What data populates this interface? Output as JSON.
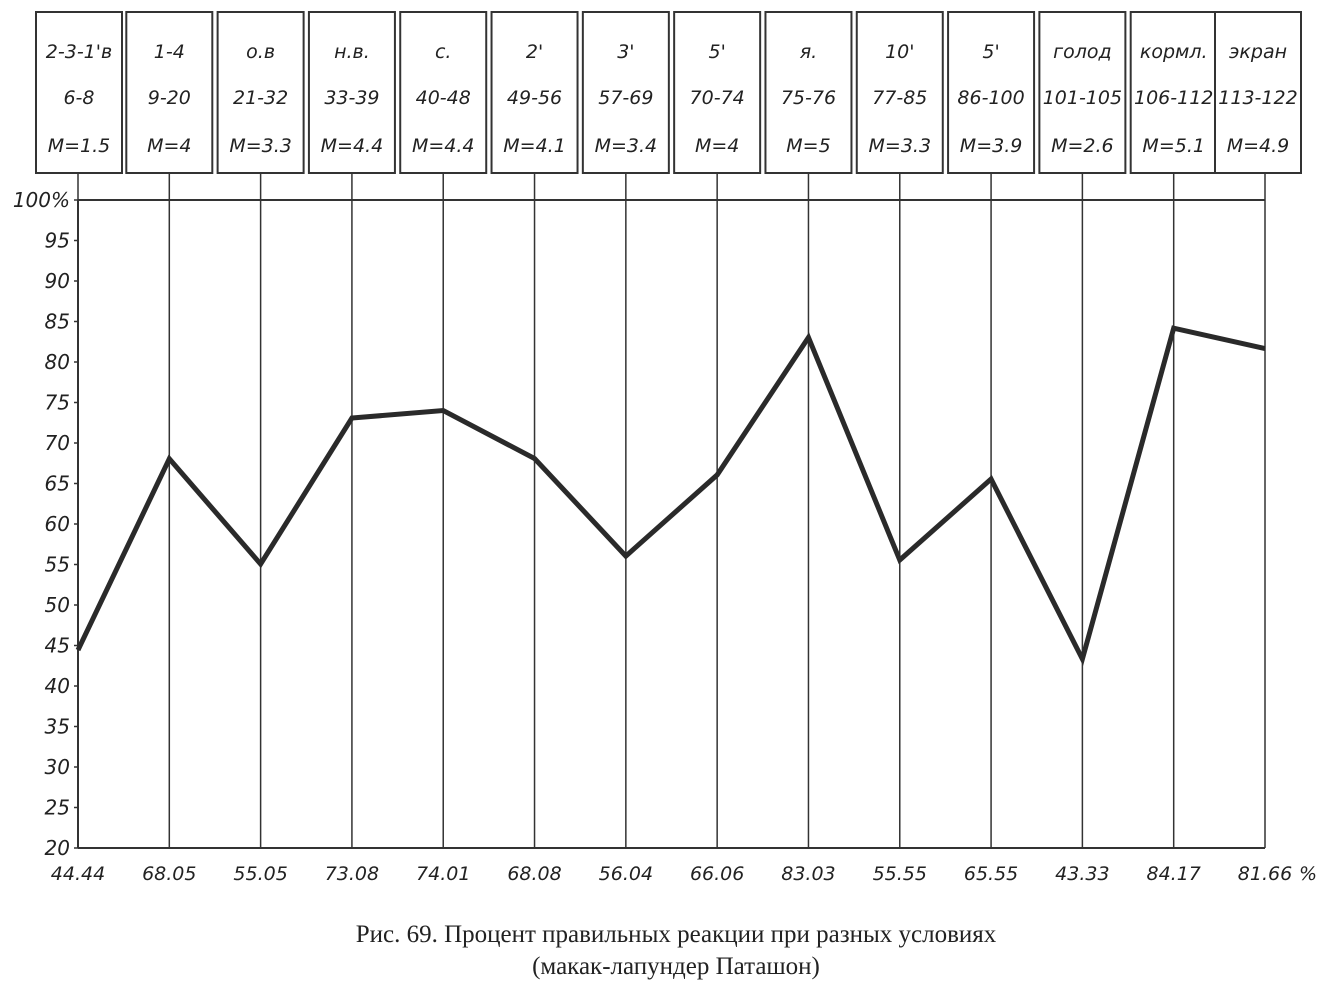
{
  "chart_data": {
    "type": "line",
    "caption": "Рис. 69. Процент правильных реакции при разных условиях",
    "subcaption": "(макак-лапундер Паташон)",
    "categories": [
      "2-3-1'в",
      "1-4",
      "о.в",
      "н.в.",
      "с.",
      "2'",
      "3'",
      "5'",
      "я.",
      "10'",
      "5'",
      "голод",
      "кормл.",
      "экран"
    ],
    "ranges": [
      "6-8",
      "9-20",
      "21-32",
      "33-39",
      "40-48",
      "49-56",
      "57-69",
      "70-74",
      "75-76",
      "77-85",
      "86-100",
      "101-105",
      "106-112",
      "113-122"
    ],
    "means": [
      "M=1.5",
      "M=4",
      "M=3.3",
      "M=4.4",
      "M=4.4",
      "M=4.1",
      "M=3.4",
      "M=4",
      "M=5",
      "M=3.3",
      "M=3.9",
      "M=2.6",
      "M=5.1",
      "M=4.9"
    ],
    "values": [
      44.44,
      68.05,
      55.05,
      73.08,
      74.01,
      68.08,
      56.04,
      66.06,
      83.03,
      55.55,
      65.55,
      43.33,
      84.17,
      81.66
    ],
    "value_labels": [
      "44.44",
      "68.05",
      "55.05",
      "73.08",
      "74.01",
      "68.08",
      "56.04",
      "66.06",
      "83.03",
      "55.55",
      "65.55",
      "43.33",
      "84.17",
      "81.66"
    ],
    "value_unit": "%",
    "color": "#2a2a2a",
    "ylim": [
      20,
      100
    ],
    "yticks": [
      20,
      25,
      30,
      35,
      40,
      45,
      50,
      55,
      60,
      65,
      70,
      75,
      80,
      85,
      90,
      95,
      {
        "value": 100,
        "label": "100%"
      }
    ],
    "grid": false
  }
}
